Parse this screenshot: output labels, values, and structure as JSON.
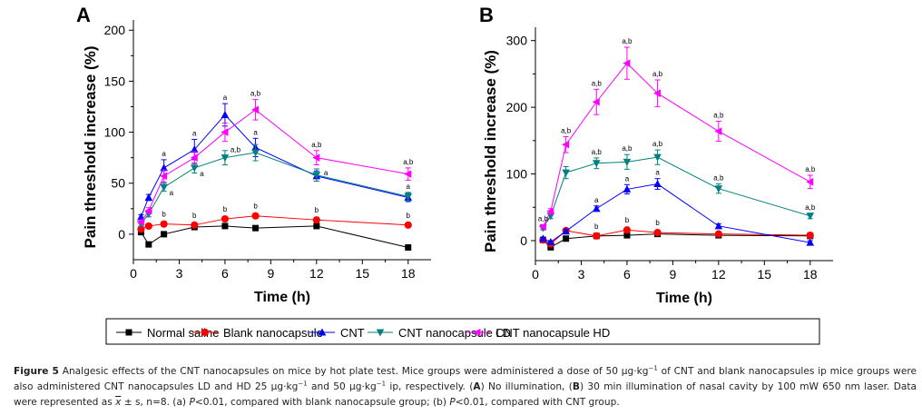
{
  "chart_data": [
    {
      "type": "line",
      "panel_label": "A",
      "title": "",
      "xlabel": "Time (h)",
      "ylabel": "Pain threshold increase (%)",
      "xlim": [
        0,
        19.5
      ],
      "ylim": [
        -25,
        210
      ],
      "xticks": [
        0,
        3,
        6,
        9,
        12,
        15,
        18
      ],
      "yticks": [
        0,
        50,
        100,
        150,
        200
      ],
      "grid": false,
      "x": [
        0.5,
        1,
        2,
        4,
        6,
        8,
        12,
        18
      ],
      "series": [
        {
          "name": "Normal saline",
          "color": "#000000",
          "marker": "square",
          "values": [
            2,
            -10,
            0,
            7,
            8,
            6,
            8,
            -13
          ],
          "errors": [
            0,
            0,
            0,
            0,
            0,
            0,
            0,
            0
          ],
          "labels": [
            "",
            "",
            "",
            "",
            "",
            "",
            "",
            ""
          ]
        },
        {
          "name": "Blank nanocapsule",
          "color": "#ff0000",
          "marker": "circle",
          "values": [
            5,
            8,
            10,
            9,
            15,
            18,
            14,
            9
          ],
          "errors": [
            0,
            0,
            0,
            0,
            0,
            0,
            0,
            0
          ],
          "labels": [
            "",
            "",
            "b",
            "b",
            "b",
            "b",
            "b",
            "b"
          ]
        },
        {
          "name": "CNT",
          "color": "#0000ff",
          "marker": "triangle-up",
          "values": [
            17,
            36,
            65,
            83,
            117,
            85,
            57,
            36
          ],
          "errors": [
            2,
            3,
            8,
            10,
            11,
            9,
            5,
            4
          ],
          "labels": [
            "",
            "",
            "a",
            "a",
            "a",
            "a",
            "",
            ""
          ]
        },
        {
          "name": "CNT nanocapsule LD",
          "color": "#008080",
          "marker": "triangle-down",
          "values": [
            10,
            20,
            46,
            65,
            75,
            80,
            58,
            37
          ],
          "errors": [
            2,
            3,
            4,
            5,
            7,
            8,
            6,
            4
          ],
          "labels": [
            "",
            "",
            "a",
            "a",
            "a,b",
            "",
            "a",
            "a"
          ]
        },
        {
          "name": "CNT nanocapsule HD",
          "color": "#ff00ff",
          "marker": "triangle-left",
          "values": [
            12,
            23,
            57,
            75,
            100,
            122,
            75,
            59
          ],
          "errors": [
            2,
            3,
            6,
            6,
            9,
            10,
            7,
            6
          ],
          "labels": [
            "",
            "",
            "",
            "",
            "",
            "a,b",
            "a,b",
            "a,b"
          ]
        }
      ]
    },
    {
      "type": "line",
      "panel_label": "B",
      "title": "",
      "xlabel": "Time (h)",
      "ylabel": "Pain threshold increase (%)",
      "xlim": [
        0,
        19.5
      ],
      "ylim": [
        -30,
        320
      ],
      "xticks": [
        0,
        3,
        6,
        9,
        12,
        15,
        18
      ],
      "yticks": [
        0,
        100,
        200,
        300
      ],
      "grid": false,
      "x": [
        0.5,
        1,
        2,
        4,
        6,
        8,
        12,
        18
      ],
      "series": [
        {
          "name": "Normal saline",
          "color": "#000000",
          "marker": "square",
          "values": [
            1,
            -10,
            3,
            7,
            8,
            10,
            8,
            7
          ],
          "errors": [
            0,
            0,
            0,
            0,
            0,
            0,
            0,
            0
          ],
          "labels": [
            "",
            "",
            "",
            "",
            "",
            "",
            "",
            ""
          ]
        },
        {
          "name": "Blank nanocapsule",
          "color": "#ff0000",
          "marker": "circle",
          "values": [
            1,
            -5,
            15,
            7,
            16,
            12,
            10,
            8
          ],
          "errors": [
            0,
            0,
            0,
            0,
            0,
            0,
            0,
            0
          ],
          "labels": [
            "",
            "",
            "",
            "b",
            "b",
            "b",
            "",
            ""
          ]
        },
        {
          "name": "CNT",
          "color": "#0000ff",
          "marker": "triangle-up",
          "values": [
            3,
            -2,
            14,
            48,
            77,
            85,
            22,
            -3
          ],
          "errors": [
            2,
            2,
            3,
            4,
            7,
            8,
            3,
            3
          ],
          "labels": [
            "",
            "",
            "",
            "a",
            "a",
            "a",
            "",
            ""
          ]
        },
        {
          "name": "CNT nanocapsule LD",
          "color": "#008080",
          "marker": "triangle-down",
          "values": [
            19,
            37,
            102,
            116,
            118,
            125,
            78,
            37
          ],
          "errors": [
            3,
            4,
            9,
            8,
            11,
            11,
            7,
            4
          ],
          "labels": [
            "",
            "",
            "",
            "a,b",
            "a,b",
            "a,b",
            "a,b",
            "a,b"
          ]
        },
        {
          "name": "CNT nanocapsule HD",
          "color": "#ff00ff",
          "marker": "triangle-left",
          "values": [
            21,
            44,
            144,
            208,
            266,
            221,
            164,
            88
          ],
          "errors": [
            3,
            4,
            12,
            19,
            24,
            20,
            15,
            10
          ],
          "labels": [
            "a,b",
            "",
            "a,b",
            "a,b",
            "a,b",
            "a,b",
            "a,b",
            "a,b"
          ]
        }
      ]
    }
  ],
  "legend": {
    "placement": "bottom-center",
    "entries": [
      {
        "label": "Normal saline",
        "color": "#000000",
        "marker": "square"
      },
      {
        "label": "Blank nanocapsule",
        "color": "#ff0000",
        "marker": "circle"
      },
      {
        "label": "CNT",
        "color": "#0000ff",
        "marker": "triangle-up"
      },
      {
        "label": "CNT nanocapsule LD",
        "color": "#008080",
        "marker": "triangle-down"
      },
      {
        "label": "CNT nanocapsule HD",
        "color": "#ff00ff",
        "marker": "triangle-left"
      }
    ]
  },
  "caption": {
    "figure_label": "Figure 5",
    "line1": " Analgesic effects of the CNT nanocapsules on mice by hot plate test. Mice groups were administered a dose of 50 μg·kg",
    "line1b": " of CNT and blank nanocapsules ip mice groups were also administered CNT nanocapsules LD and HD 25 μg·kg",
    "line1c": " and 50 μg·kg",
    "line1d": " ip, respectively. (",
    "A": "A",
    "mid1": ") No illumination, (",
    "B": "B",
    "mid2": ") 30 min illumination of nasal cavity by 100 mW 650 nm laser. Data were represented as ",
    "xbar": "x",
    "end": " ± s, n=8. (a) ",
    "p1": "P",
    "end2": "<0.01, compared with blank nanocapsule group; (b) ",
    "p2": "P",
    "end3": "<0.01, compared with CNT group.",
    "sup": "−1"
  }
}
